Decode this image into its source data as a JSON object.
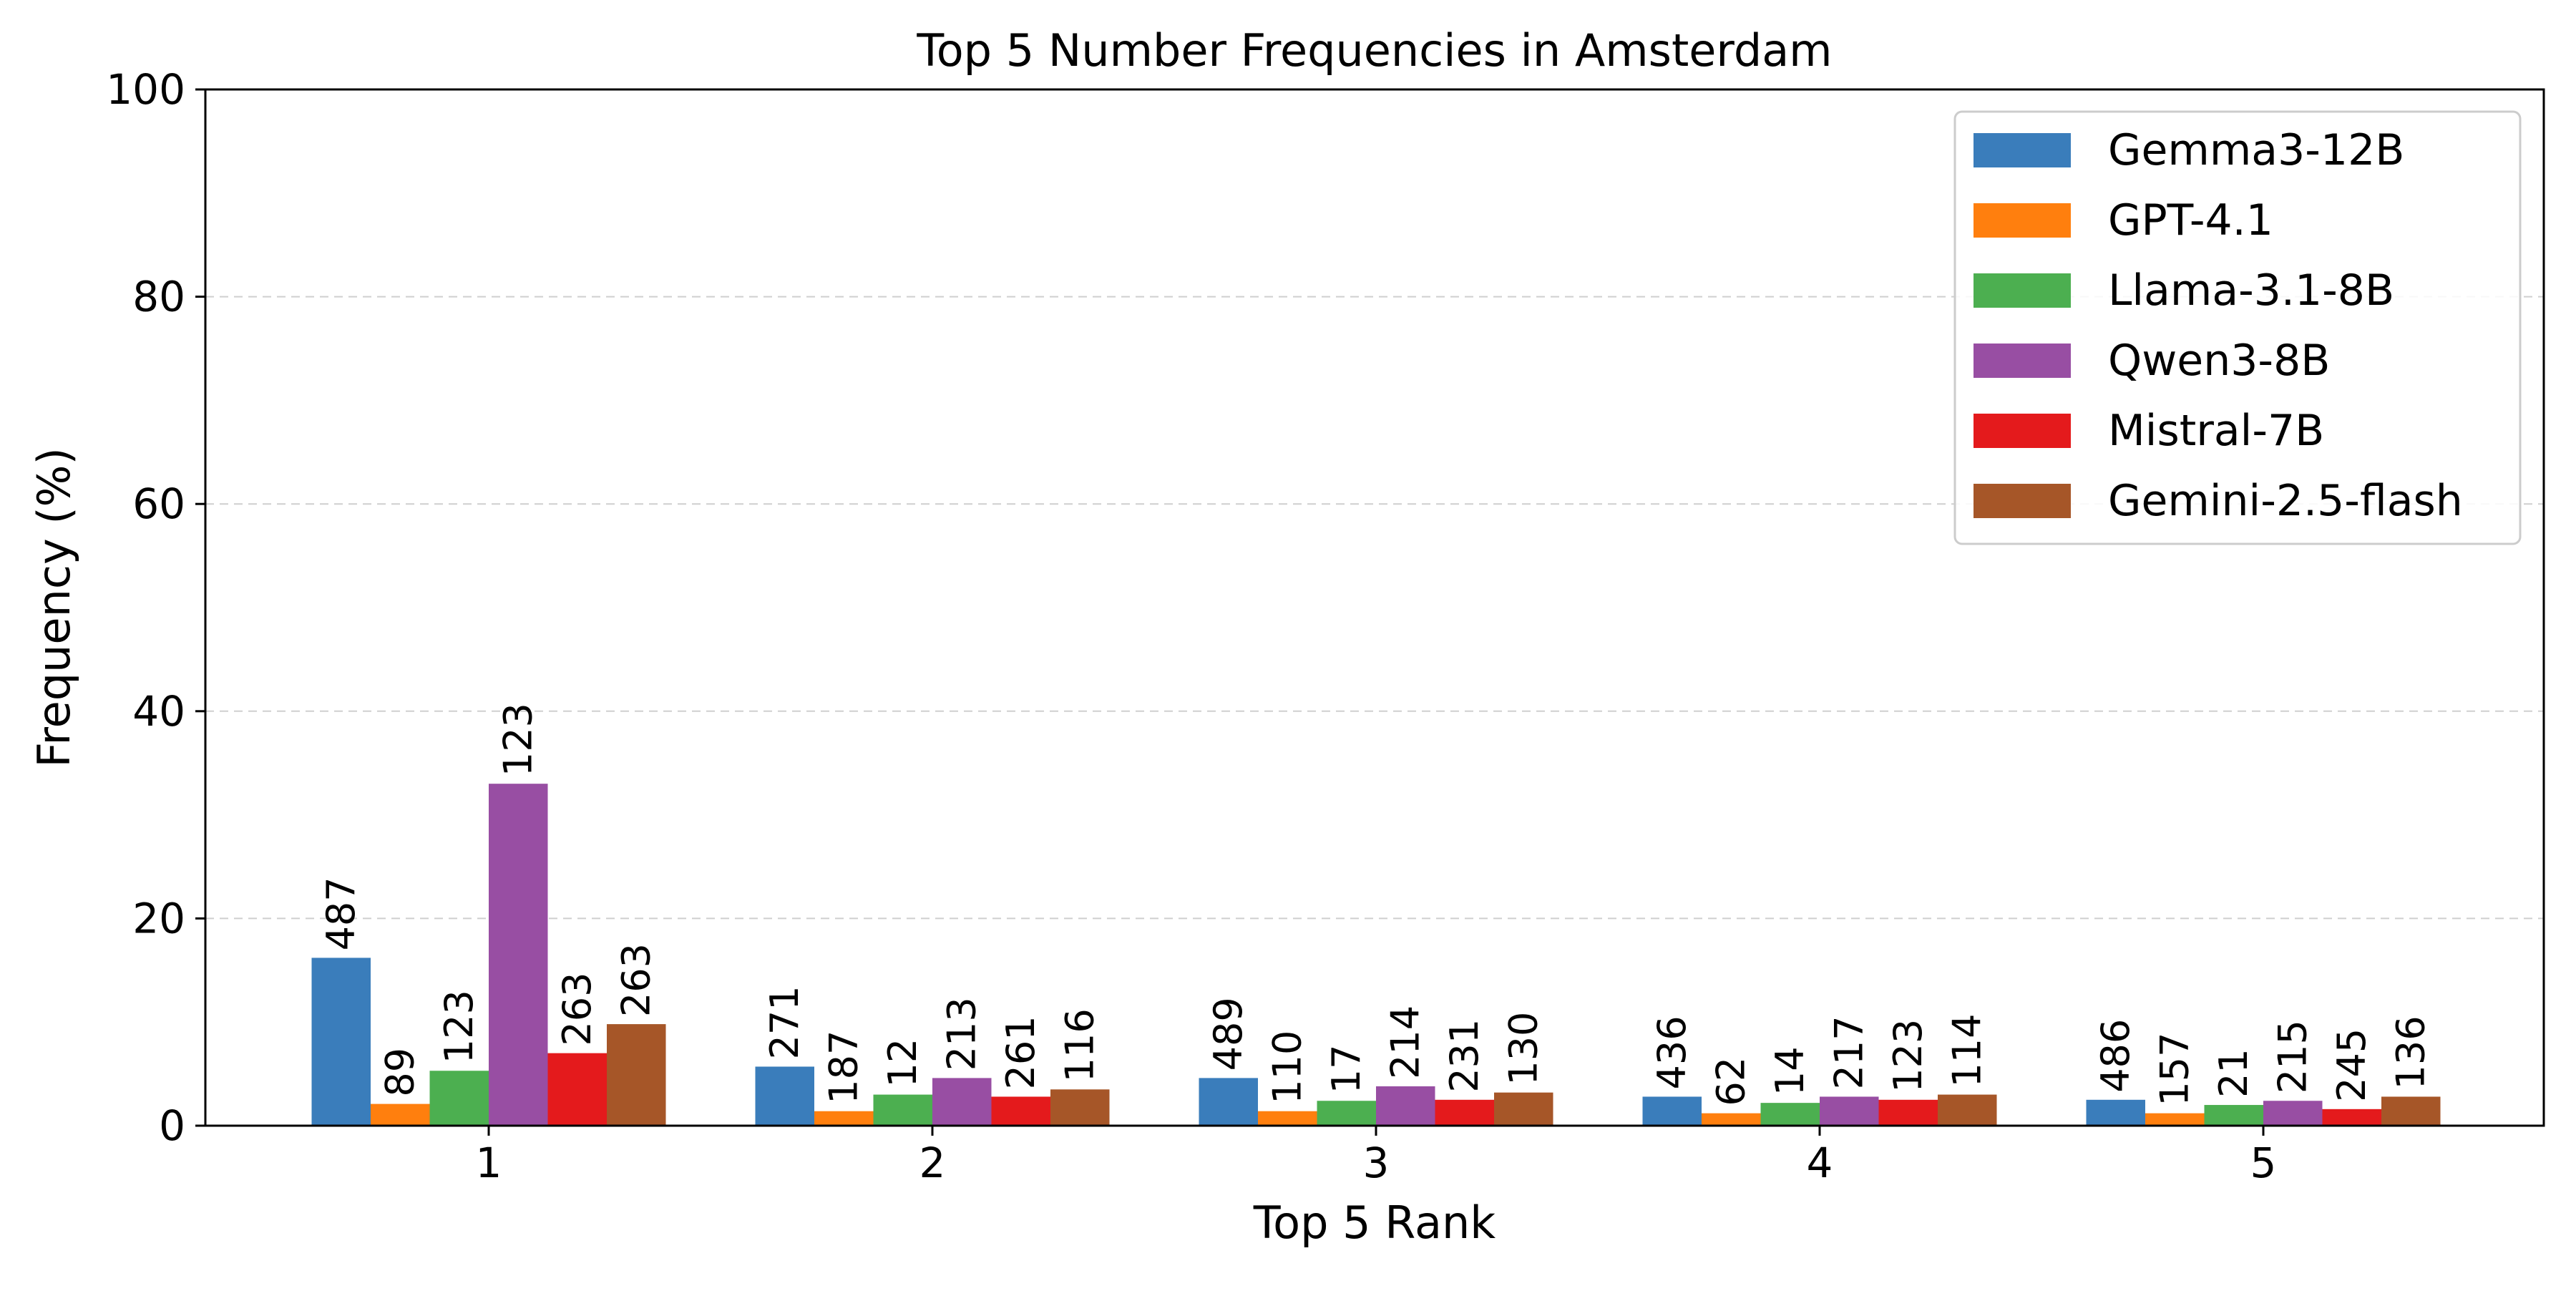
{
  "chart_data": {
    "type": "bar",
    "title": "Top 5 Number Frequencies in Amsterdam",
    "xlabel": "Top 5 Rank",
    "ylabel": "Frequency (%)",
    "ylim": [
      0,
      100
    ],
    "yticks": [
      0,
      20,
      40,
      60,
      80,
      100
    ],
    "grid": "y-dashed",
    "legend_position": "top-right",
    "categories": [
      "1",
      "2",
      "3",
      "4",
      "5"
    ],
    "series": [
      {
        "name": "Gemma3-12B",
        "color": "#3a7dbb",
        "values": [
          16.2,
          5.7,
          4.6,
          2.8,
          2.5
        ],
        "labels": [
          "487",
          "271",
          "489",
          "436",
          "486"
        ]
      },
      {
        "name": "GPT-4.1",
        "color": "#ff7f0e",
        "values": [
          2.1,
          1.4,
          1.4,
          1.2,
          1.2
        ],
        "labels": [
          "89",
          "187",
          "110",
          "62",
          "157"
        ]
      },
      {
        "name": "Llama-3.1-8B",
        "color": "#4caf50",
        "values": [
          5.3,
          3.0,
          2.4,
          2.2,
          2.0
        ],
        "labels": [
          "123",
          "12",
          "17",
          "14",
          "21"
        ]
      },
      {
        "name": "Qwen3-8B",
        "color": "#984ea3",
        "values": [
          33.0,
          4.6,
          3.8,
          2.8,
          2.4
        ],
        "labels": [
          "123",
          "213",
          "214",
          "217",
          "215"
        ]
      },
      {
        "name": "Mistral-7B",
        "color": "#e41a1c",
        "values": [
          7.0,
          2.8,
          2.5,
          2.5,
          1.6
        ],
        "labels": [
          "263",
          "261",
          "231",
          "123",
          "245"
        ]
      },
      {
        "name": "Gemini-2.5-flash",
        "color": "#a65628",
        "values": [
          9.8,
          3.5,
          3.2,
          3.0,
          2.8
        ],
        "labels": [
          "263",
          "116",
          "130",
          "114",
          "136"
        ]
      }
    ]
  }
}
